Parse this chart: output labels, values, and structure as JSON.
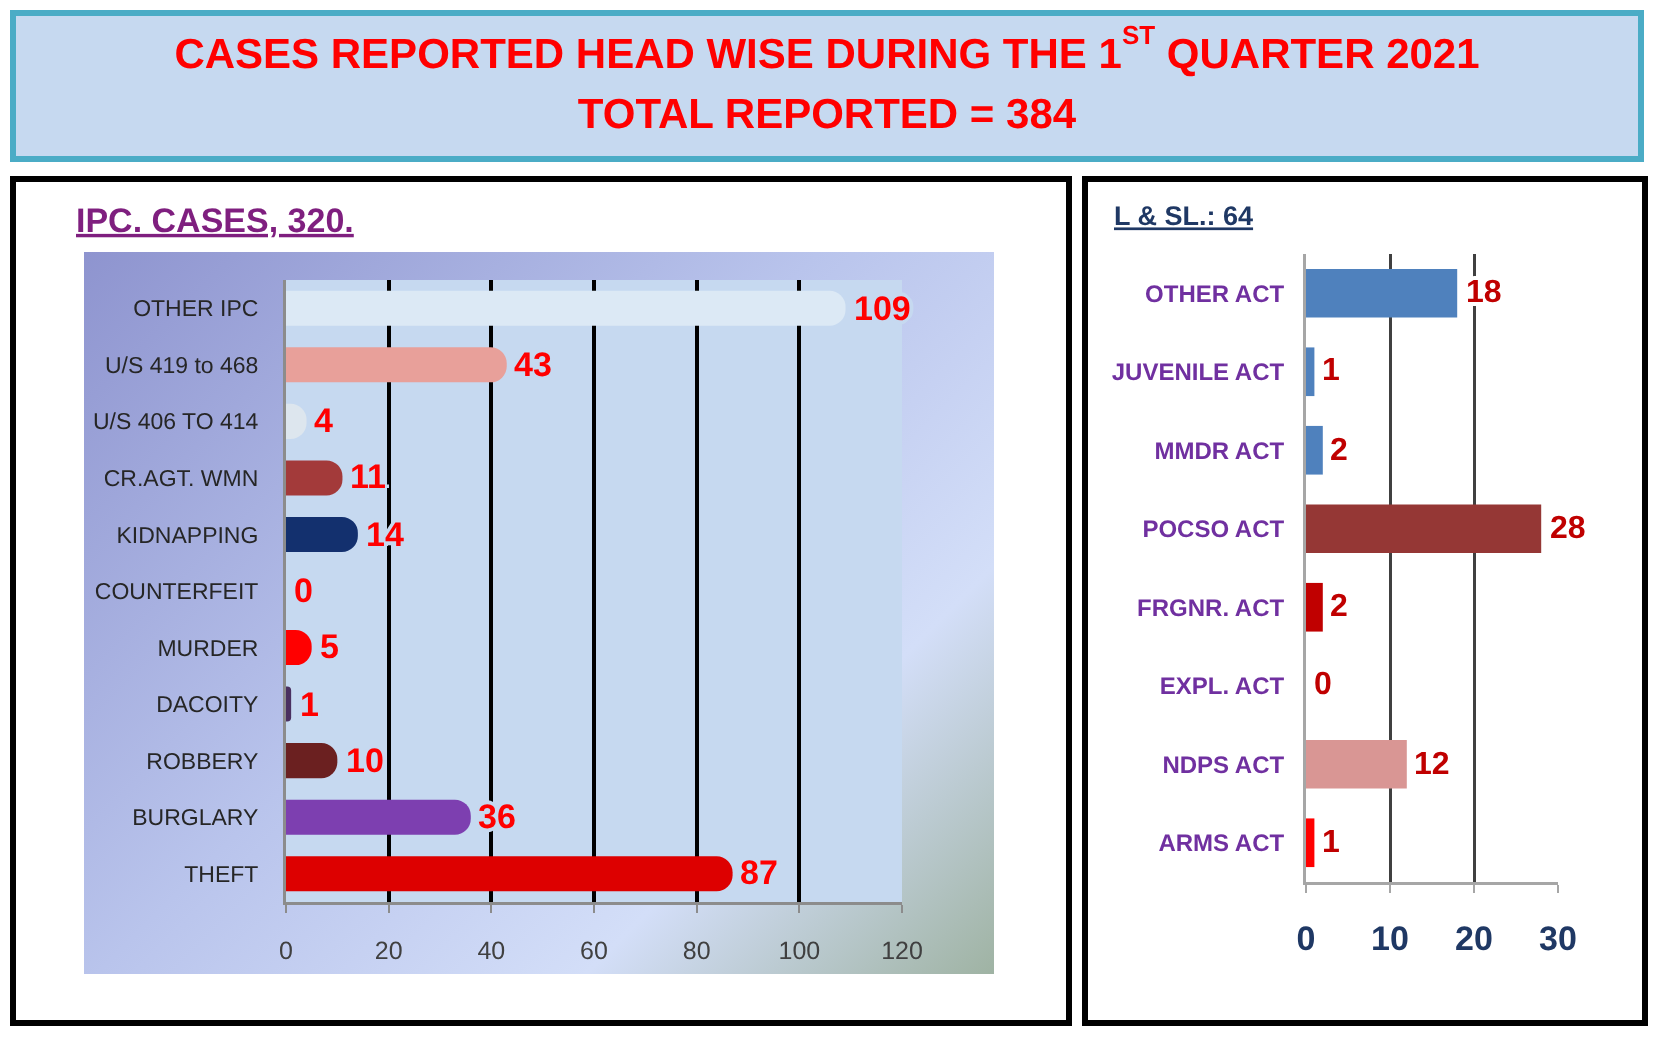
{
  "chart_data": [
    {
      "type": "other",
      "title": "CASES REPORTED HEAD WISE DURING THE 1$^{ST}$ QUARTER 2021",
      "subtitle": "TOTAL REPORTED = 384"
    },
    {
      "type": "bar",
      "orientation": "horizontal",
      "title": "IPC. CASES, 320.",
      "categories": [
        "OTHER IPC",
        "U/S 419 to 468",
        "U/S 406 TO 414",
        "CR.AGT. WMN",
        "KIDNAPPING",
        "COUNTERFEIT",
        "MURDER",
        "DACOITY",
        "ROBBERY",
        "BURGLARY",
        "THEFT"
      ],
      "values": [
        109,
        43,
        4,
        11,
        14,
        0,
        5,
        1,
        10,
        36,
        87
      ],
      "colors": [
        "#dce9f5",
        "#e8a09a",
        "#dde6ee",
        "#a33a3a",
        "#13306e",
        "#a0a8a8",
        "#ff0000",
        "#4a3060",
        "#6b2020",
        "#7d3fb0",
        "#dd0000"
      ],
      "xlim": [
        0,
        120
      ],
      "xticks": [
        0,
        20,
        40,
        60,
        80,
        100,
        120
      ],
      "grid": "x",
      "data_labels": true
    },
    {
      "type": "bar",
      "orientation": "horizontal",
      "title": "L & SL.: 64",
      "categories": [
        "OTHER ACT",
        "JUVENILE ACT",
        "MMDR ACT",
        "POCSO ACT",
        "FRGNR. ACT",
        "EXPL. ACT",
        "NDPS ACT",
        "ARMS ACT"
      ],
      "values": [
        18,
        1,
        2,
        28,
        2,
        0,
        12,
        1
      ],
      "colors": [
        "#4f81bd",
        "#4f81bd",
        "#4f81bd",
        "#953735",
        "#c00000",
        "#2e4d7b",
        "#d99694",
        "#ff0000"
      ],
      "xlim": [
        0,
        30
      ],
      "xticks": [
        0,
        10,
        20,
        30
      ],
      "grid": "x",
      "data_labels": true
    }
  ]
}
